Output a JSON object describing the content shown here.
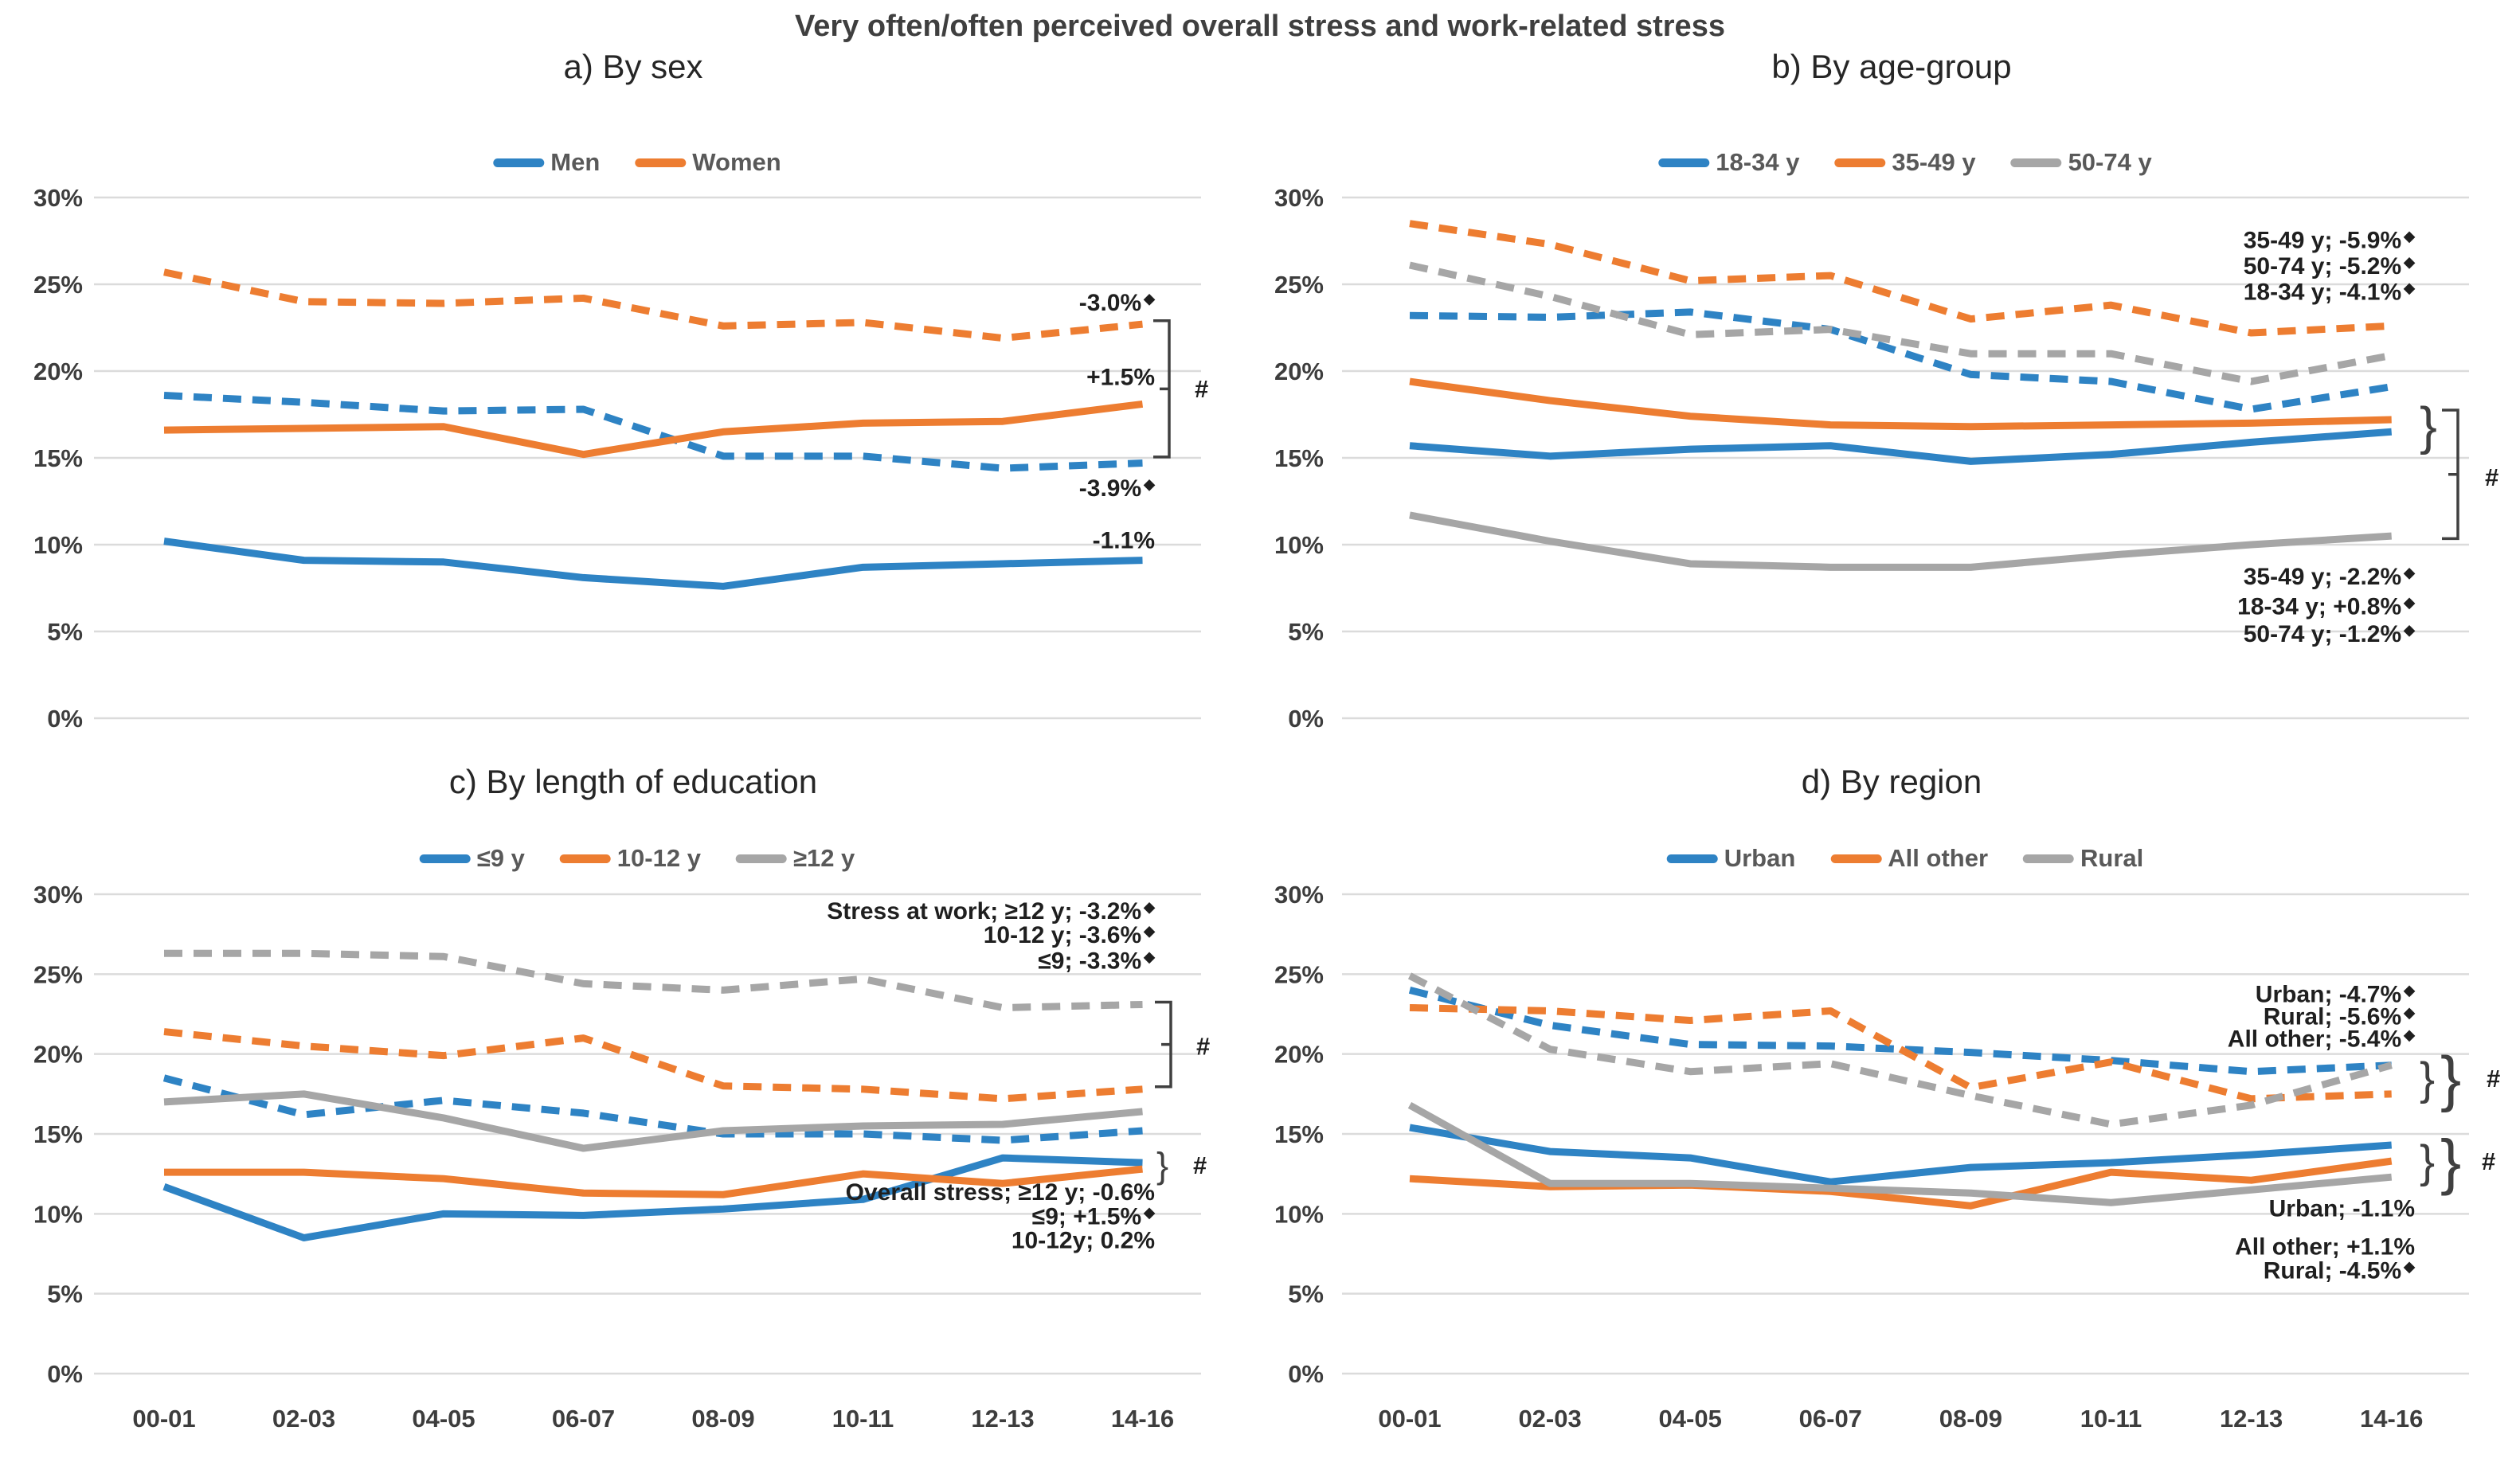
{
  "title": "Very often/often perceived overall stress and work-related stress",
  "colors": {
    "blue": "#2E83C4",
    "orange": "#ED7D31",
    "gray": "#A6A6A6",
    "grid": "#DBDBDB",
    "tick_text": "#3d3d3d",
    "legend_text": "#595959",
    "annotation_text": "#1f1f1f",
    "marker_stroke": "#404040"
  },
  "x_categories": [
    "00-01",
    "02-03",
    "04-05",
    "06-07",
    "08-09",
    "10-11",
    "12-13",
    "14-16"
  ],
  "y_axis": {
    "ticks": [
      "30%",
      "25%",
      "20%",
      "15%",
      "10%",
      "5%",
      "0%"
    ],
    "ylim": [
      0,
      30
    ]
  },
  "chart_data": [
    {
      "id": "a",
      "type": "line",
      "title": "a) By sex",
      "legend": [
        {
          "label": "Men",
          "color": "blue"
        },
        {
          "label": "Women",
          "color": "orange"
        }
      ],
      "series": [
        {
          "name": "Men - stress at work",
          "color": "blue",
          "style": "dashed",
          "values": [
            18.6,
            18.2,
            17.7,
            17.8,
            15.1,
            15.1,
            14.4,
            14.7
          ]
        },
        {
          "name": "Women - stress at work",
          "color": "orange",
          "style": "dashed",
          "values": [
            25.7,
            24.0,
            23.9,
            24.2,
            22.6,
            22.8,
            21.9,
            22.7
          ]
        },
        {
          "name": "Men - overall stress",
          "color": "blue",
          "style": "solid",
          "values": [
            10.2,
            9.1,
            9.0,
            8.1,
            7.6,
            8.7,
            8.9,
            9.1
          ]
        },
        {
          "name": "Women - overall stress",
          "color": "orange",
          "style": "solid",
          "values": [
            16.6,
            16.7,
            16.8,
            15.2,
            16.5,
            17.0,
            17.1,
            18.1
          ]
        }
      ],
      "annotations": [
        {
          "text": "-3.0%",
          "star": true,
          "v": 24.0
        },
        {
          "text": "+1.5%",
          "star": false,
          "v": 19.7
        },
        {
          "text": "-3.9%",
          "star": true,
          "v": 13.3
        },
        {
          "text": "-1.1%",
          "star": false,
          "v": 10.3
        }
      ],
      "markers": {
        "square_brackets": [
          {
            "x": 1468,
            "v_top": 22.9,
            "v_bottom": 15.05
          }
        ],
        "braces": [],
        "hashes": [
          {
            "x": 1500,
            "v": 19.0,
            "label": "#"
          }
        ]
      }
    },
    {
      "id": "b",
      "type": "line",
      "title": "b) By age-group",
      "legend": [
        {
          "label": "18-34 y",
          "color": "blue"
        },
        {
          "label": "35-49 y",
          "color": "orange"
        },
        {
          "label": "50-74 y",
          "color": "gray"
        }
      ],
      "series": [
        {
          "name": "18-34 y - stress at work",
          "color": "blue",
          "style": "dashed",
          "values": [
            23.2,
            23.1,
            23.4,
            22.4,
            19.8,
            19.4,
            17.8,
            19.1
          ]
        },
        {
          "name": "35-49 y - stress at work",
          "color": "orange",
          "style": "dashed",
          "values": [
            28.5,
            27.3,
            25.2,
            25.5,
            23.0,
            23.8,
            22.2,
            22.6
          ]
        },
        {
          "name": "50-74 y - stress at work",
          "color": "gray",
          "style": "dashed",
          "values": [
            26.1,
            24.3,
            22.1,
            22.4,
            21.0,
            21.0,
            19.4,
            20.9
          ]
        },
        {
          "name": "18-34 y - overall stress",
          "color": "blue",
          "style": "solid",
          "values": [
            15.7,
            15.1,
            15.5,
            15.7,
            14.8,
            15.2,
            15.9,
            16.5
          ]
        },
        {
          "name": "35-49 y - overall stress",
          "color": "orange",
          "style": "solid",
          "values": [
            19.4,
            18.3,
            17.4,
            16.9,
            16.8,
            16.9,
            17.0,
            17.2
          ]
        },
        {
          "name": "50-74 y - overall stress",
          "color": "gray",
          "style": "solid",
          "values": [
            11.7,
            10.2,
            8.9,
            8.7,
            8.7,
            9.4,
            10.0,
            10.5
          ]
        }
      ],
      "annotations": [
        {
          "text": "35-49 y; -5.9%",
          "star": true,
          "v": 27.6
        },
        {
          "text": "50-74 y; -5.2%",
          "star": true,
          "v": 26.1
        },
        {
          "text": "18-34 y; -4.1%",
          "star": true,
          "v": 24.6
        },
        {
          "text": "35-49 y; -2.2%",
          "star": true,
          "v": 8.2
        },
        {
          "text": "18-34 y; +0.8%",
          "star": true,
          "v": 6.5
        },
        {
          "text": "50-74 y; -1.2%",
          "star": true,
          "v": 4.9
        }
      ],
      "markers": {
        "square_brackets": [
          {
            "x": 3086,
            "v_top": 17.75,
            "v_bottom": 10.35
          }
        ],
        "braces": [
          {
            "x": 3038,
            "v": 16.85,
            "span": 2.0
          }
        ],
        "hashes": [
          {
            "x": 3120,
            "v": 13.9,
            "label": "#"
          }
        ]
      }
    },
    {
      "id": "c",
      "type": "line",
      "title": "c) By length of education",
      "legend": [
        {
          "label": "≤9 y",
          "color": "blue"
        },
        {
          "label": "10-12 y",
          "color": "orange"
        },
        {
          "label": "≥12 y",
          "color": "gray"
        }
      ],
      "series": [
        {
          "name": "≤9 y - stress at work",
          "color": "blue",
          "style": "dashed",
          "values": [
            18.5,
            16.2,
            17.1,
            16.3,
            15.0,
            15.0,
            14.6,
            15.2
          ]
        },
        {
          "name": "10-12 y - stress at work",
          "color": "orange",
          "style": "dashed",
          "values": [
            21.4,
            20.5,
            19.9,
            21.0,
            18.0,
            17.8,
            17.2,
            17.8
          ]
        },
        {
          "name": "≥12 y - stress at work",
          "color": "gray",
          "style": "dashed",
          "values": [
            26.3,
            26.3,
            26.1,
            24.4,
            24.0,
            24.7,
            22.9,
            23.1
          ]
        },
        {
          "name": "≤9 y - overall stress",
          "color": "blue",
          "style": "solid",
          "values": [
            11.7,
            8.5,
            10.0,
            9.9,
            10.3,
            10.9,
            13.5,
            13.2
          ]
        },
        {
          "name": "10-12 y - overall stress",
          "color": "orange",
          "style": "solid",
          "values": [
            12.6,
            12.6,
            12.2,
            11.3,
            11.2,
            12.5,
            11.9,
            12.8
          ]
        },
        {
          "name": "≥12 y - overall stress",
          "color": "gray",
          "style": "solid",
          "values": [
            17.0,
            17.5,
            16.0,
            14.1,
            15.2,
            15.5,
            15.6,
            16.4
          ]
        }
      ],
      "annotations": [
        {
          "text": "Stress at work; ≥12 y; -3.2%",
          "star": true,
          "v": 29.0
        },
        {
          "text": "10-12 y; -3.6%",
          "star": true,
          "v": 27.5
        },
        {
          "text": "≤9; -3.3%",
          "star": true,
          "v": 25.9
        },
        {
          "text": "Overall stress; ≥12 y; -0.6%",
          "star": false,
          "v": 11.4
        },
        {
          "text": "≤9; +1.5%",
          "star": true,
          "v": 9.9
        },
        {
          "text": "10-12y; 0.2%",
          "star": false,
          "v": 8.4
        }
      ],
      "markers": {
        "square_brackets": [
          {
            "x": 1470,
            "v_top": 23.25,
            "v_bottom": 17.95
          }
        ],
        "braces": [
          {
            "x": 1452,
            "v": 13.05,
            "span": 1.5
          }
        ],
        "hashes": [
          {
            "x": 1502,
            "v": 20.5,
            "label": "#"
          },
          {
            "x": 1498,
            "v": 13.05,
            "label": "#"
          }
        ]
      }
    },
    {
      "id": "d",
      "type": "line",
      "title": "d) By region",
      "legend": [
        {
          "label": "Urban",
          "color": "blue"
        },
        {
          "label": "All other",
          "color": "orange"
        },
        {
          "label": "Rural",
          "color": "gray"
        }
      ],
      "series": [
        {
          "name": "Urban - stress at work",
          "color": "blue",
          "style": "dashed",
          "values": [
            24.0,
            21.8,
            20.6,
            20.5,
            20.1,
            19.6,
            18.9,
            19.3
          ]
        },
        {
          "name": "All other - stress at work",
          "color": "orange",
          "style": "dashed",
          "values": [
            22.9,
            22.7,
            22.1,
            22.7,
            17.9,
            19.5,
            17.2,
            17.5
          ]
        },
        {
          "name": "Rural - stress at work",
          "color": "gray",
          "style": "dashed",
          "values": [
            24.9,
            20.3,
            18.9,
            19.4,
            17.4,
            15.6,
            16.8,
            19.3
          ]
        },
        {
          "name": "Urban - overall stress",
          "color": "blue",
          "style": "solid",
          "values": [
            15.4,
            13.9,
            13.5,
            12.0,
            12.9,
            13.2,
            13.7,
            14.3
          ]
        },
        {
          "name": "All other - overall stress",
          "color": "orange",
          "style": "solid",
          "values": [
            12.2,
            11.7,
            11.8,
            11.4,
            10.5,
            12.6,
            12.1,
            13.3
          ]
        },
        {
          "name": "Rural - overall stress",
          "color": "gray",
          "style": "solid",
          "values": [
            16.8,
            11.9,
            11.9,
            11.6,
            11.3,
            10.7,
            11.5,
            12.3
          ]
        }
      ],
      "annotations": [
        {
          "text": "Urban; -4.7%",
          "star": true,
          "v": 23.8
        },
        {
          "text": "Rural; -5.6%",
          "star": true,
          "v": 22.4
        },
        {
          "text": "All other; -5.4%",
          "star": true,
          "v": 21.0
        },
        {
          "text": "Urban; -1.1%",
          "star": false,
          "v": 10.4
        },
        {
          "text": "All other; +1.1%",
          "star": false,
          "v": 8.0
        },
        {
          "text": "Rural; -4.5%",
          "star": true,
          "v": 6.5
        }
      ],
      "markers": {
        "square_brackets": [],
        "braces": [
          {
            "x": 3038,
            "v": 18.5,
            "span": 1.9
          },
          {
            "x": 3064,
            "v": 18.5,
            "span": 2.6
          },
          {
            "x": 3038,
            "v": 13.3,
            "span": 1.9
          },
          {
            "x": 3064,
            "v": 13.3,
            "span": 2.6
          }
        ],
        "hashes": [
          {
            "x": 3122,
            "v": 18.5,
            "label": "#"
          },
          {
            "x": 3116,
            "v": 13.3,
            "label": "#"
          }
        ]
      }
    }
  ]
}
